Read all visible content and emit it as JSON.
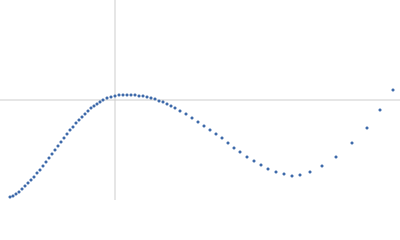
{
  "chart_data": {
    "type": "scatter",
    "color": "#3e6aaa",
    "xlim": [
      0,
      400
    ],
    "ylim": [
      0,
      200
    ],
    "reference_lines": {
      "x": 115,
      "y": 100,
      "color": "#cccccc"
    },
    "x": [
      10,
      13,
      16,
      19,
      22,
      25,
      28,
      31,
      34,
      37,
      40,
      43,
      46,
      49,
      52,
      55,
      58,
      61,
      64,
      67,
      70,
      73,
      76,
      79,
      82,
      85,
      88,
      91,
      94,
      97,
      100,
      103,
      107,
      111,
      115,
      119,
      123,
      127,
      131,
      135,
      139,
      143,
      147,
      151,
      155,
      159,
      163,
      167,
      171,
      175,
      180,
      186,
      192,
      198,
      204,
      210,
      216,
      222,
      228,
      234,
      240,
      247,
      254,
      261,
      268,
      276,
      284,
      292,
      300,
      310,
      322,
      336,
      352,
      367,
      380,
      393
    ],
    "y": [
      3,
      4,
      6,
      8,
      11,
      14,
      17,
      20,
      23,
      27,
      30,
      34,
      38,
      42,
      46,
      50,
      54,
      58,
      62,
      66,
      70,
      73,
      77,
      80,
      83,
      86,
      89,
      92,
      94,
      96,
      98,
      100,
      102,
      103,
      104,
      105,
      105,
      105,
      105,
      105,
      104,
      104,
      103,
      102,
      101,
      99,
      98,
      96,
      94,
      92,
      89,
      86,
      82,
      78,
      74,
      70,
      66,
      62,
      57,
      52,
      48,
      43,
      39,
      35,
      31,
      28,
      26,
      24,
      25,
      28,
      34,
      43,
      57,
      72,
      90,
      110
    ]
  }
}
